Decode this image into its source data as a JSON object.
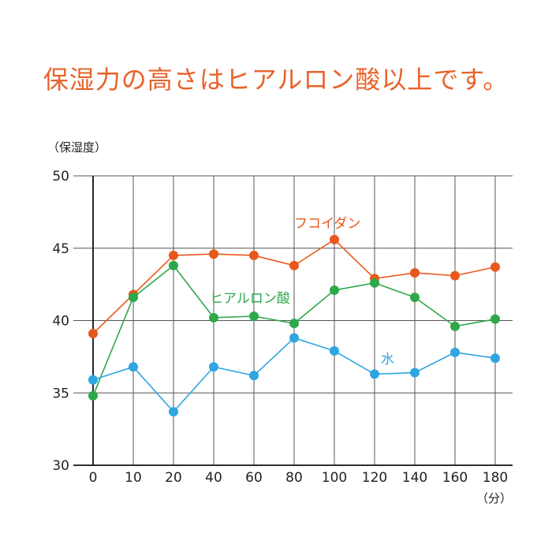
{
  "chart_data": {
    "type": "line",
    "title": "保湿力の高さはヒアルロン酸以上です。",
    "ylabel": "（保湿度）",
    "xlabel": "（分）",
    "categories": [
      "0",
      "10",
      "20",
      "40",
      "60",
      "80",
      "100",
      "120",
      "140",
      "160",
      "180"
    ],
    "ylim": [
      30,
      50
    ],
    "yticks": [
      50,
      45,
      40,
      35,
      30
    ],
    "grid": true,
    "series": [
      {
        "name": "フコイダン",
        "color": "#e8581c",
        "values": [
          39.1,
          41.8,
          44.5,
          44.6,
          44.5,
          43.8,
          45.6,
          42.9,
          43.3,
          43.1,
          43.7
        ]
      },
      {
        "name": "ヒアルロン酸",
        "color": "#2ea84a",
        "values": [
          34.8,
          41.6,
          43.8,
          40.2,
          40.3,
          39.8,
          42.1,
          42.6,
          41.6,
          39.6,
          40.1
        ]
      },
      {
        "name": "水",
        "color": "#2fa6e2",
        "values": [
          35.9,
          36.8,
          33.7,
          36.8,
          36.2,
          38.8,
          37.9,
          36.3,
          36.4,
          37.8,
          37.4
        ]
      }
    ]
  }
}
